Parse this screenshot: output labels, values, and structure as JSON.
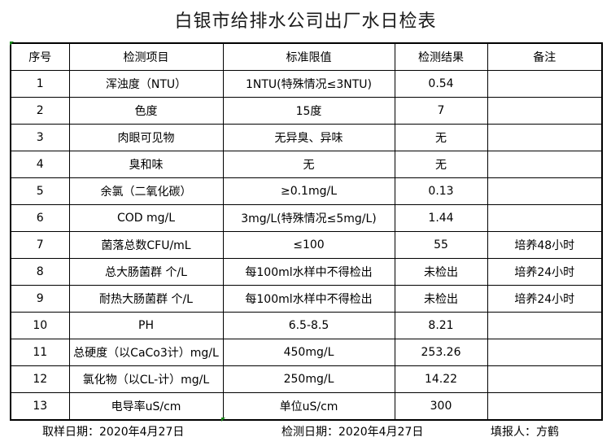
{
  "title": "白银市给排水公司出厂水日检表",
  "table": {
    "headers": [
      "序号",
      "检测项目",
      "标准限值",
      "检测结果",
      "备注"
    ],
    "rows": [
      [
        "1",
        "浑浊度（NTU）",
        "1NTU(特殊情况≤3NTU)",
        "0.54",
        ""
      ],
      [
        "2",
        "色度",
        "15度",
        "7",
        ""
      ],
      [
        "3",
        "肉眼可见物",
        "无异臭、异味",
        "无",
        ""
      ],
      [
        "4",
        "臭和味",
        "无",
        "无",
        ""
      ],
      [
        "5",
        "余氯（二氧化碳）",
        "≥0.1mg/L",
        "0.13",
        ""
      ],
      [
        "6",
        "COD        mg/L",
        "3mg/L(特殊情况≤5mg/L)",
        "1.44",
        ""
      ],
      [
        "7",
        "菌落总数CFU/mL",
        "≤100",
        "55",
        "培养48小时"
      ],
      [
        "8",
        "总大肠菌群 个/L",
        "每100ml水样中不得检出",
        "未检出",
        "培养24小时"
      ],
      [
        "9",
        "耐热大肠菌群 个/L",
        "每100ml水样中不得检出",
        "未检出",
        "培养24小时"
      ],
      [
        "10",
        "PH",
        "6.5-8.5",
        "8.21",
        ""
      ],
      [
        "11",
        "总硬度（以CaCo3计）mg/L",
        "450mg/L",
        "253.26",
        ""
      ],
      [
        "12",
        "氯化物（以CL-计）mg/L",
        "250mg/L",
        "14.22",
        ""
      ],
      [
        "13",
        "电导率uS/cm",
        "单位uS/cm",
        "300",
        ""
      ]
    ]
  },
  "footer": {
    "sampling_date": "取样日期：2020年4月27日",
    "test_date": "检测日期：2020年4月27日",
    "reporter": "填报人：方鹤"
  }
}
